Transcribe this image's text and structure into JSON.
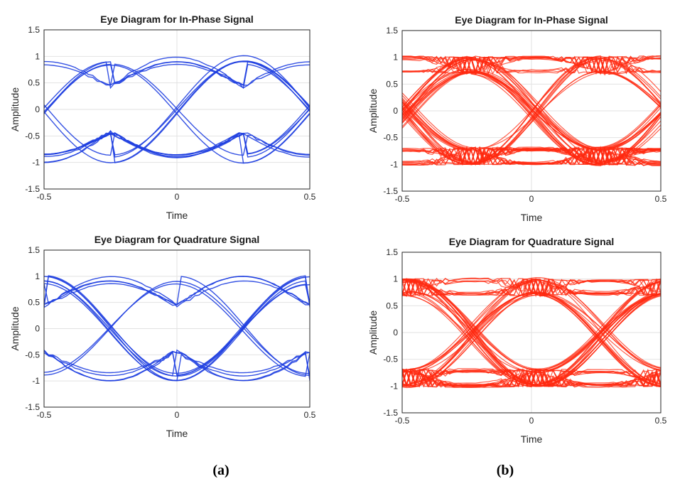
{
  "captions": {
    "a": "(a)",
    "b": "(b)"
  },
  "chart_data": [
    {
      "type": "line",
      "panel": "a",
      "title": "Eye Diagram for In-Phase Signal",
      "xlabel": "Time",
      "ylabel": "Amplitude",
      "xlim": [
        -0.5,
        0.5
      ],
      "ylim": [
        -1.5,
        1.5
      ],
      "xticks": [
        -0.5,
        0,
        0.5
      ],
      "xtick_labels": [
        "-0.5",
        "0",
        "0.5"
      ],
      "yticks": [
        1.5,
        1,
        0.5,
        0,
        -0.5,
        -1,
        -1.5
      ],
      "ytick_labels": [
        "1.5",
        "1",
        "0.5",
        "0",
        "-0.5",
        "-1",
        "-1.5"
      ],
      "grid": true,
      "color": "#1f3fe0",
      "crossings": [
        -0.25,
        0.25
      ],
      "eye_center_values": [
        1.0,
        0.9,
        0.85,
        -0.85,
        -0.9,
        -1.0
      ],
      "eye_edge_values": [
        0.45,
        0.4,
        -0.4,
        -0.45
      ]
    },
    {
      "type": "line",
      "panel": "b",
      "title": "Eye Diagram for In-Phase Signal",
      "xlabel": "Time",
      "ylabel": "Amplitude",
      "xlim": [
        -0.5,
        0.5
      ],
      "ylim": [
        -1.5,
        1.5
      ],
      "xticks": [
        -0.5,
        0,
        0.5
      ],
      "xtick_labels": [
        "-0.5",
        "0",
        "0.5"
      ],
      "yticks": [
        1.5,
        1,
        0.5,
        0,
        -0.5,
        -1,
        -1.5
      ],
      "ytick_labels": [
        "1.5",
        "1",
        "0.5",
        "0",
        "-0.5",
        "-1",
        "-1.5"
      ],
      "grid": true,
      "color": "#ff2a10",
      "crossings": [
        -0.23,
        0.27
      ],
      "eye_center_values": [
        1.0,
        0.97,
        0.75,
        0.72,
        -0.7,
        -0.73,
        -0.97,
        -1.0
      ],
      "eye_edge_values": [
        1.0,
        0.72,
        -0.68,
        -1.0
      ]
    },
    {
      "type": "line",
      "panel": "a",
      "title": "Eye Diagram for Quadrature Signal",
      "xlabel": "Time",
      "ylabel": "Amplitude",
      "xlim": [
        -0.5,
        0.5
      ],
      "ylim": [
        -1.5,
        1.5
      ],
      "xticks": [
        -0.5,
        0,
        0.5
      ],
      "xtick_labels": [
        "-0.5",
        "0",
        "0.5"
      ],
      "yticks": [
        1.5,
        1,
        0.5,
        0,
        -0.5,
        -1,
        -1.5
      ],
      "ytick_labels": [
        "1.5",
        "1",
        "0.5",
        "0",
        "-0.5",
        "-1",
        "-1.5"
      ],
      "grid": true,
      "color": "#1f3fe0",
      "crossings": [
        -0.5,
        0.0,
        0.5
      ],
      "eye_center_values": [
        1.0,
        0.9,
        0.85,
        -0.85,
        -0.9,
        -1.0
      ],
      "eye_edge_values": [
        0.45,
        0.4,
        -0.4,
        -0.45
      ]
    },
    {
      "type": "line",
      "panel": "b",
      "title": "Eye Diagram for Quadrature Signal",
      "xlabel": "Time",
      "ylabel": "Amplitude",
      "xlim": [
        -0.5,
        0.5
      ],
      "ylim": [
        -1.5,
        1.5
      ],
      "xticks": [
        -0.5,
        0,
        0.5
      ],
      "xtick_labels": [
        "-0.5",
        "0",
        "0.5"
      ],
      "yticks": [
        1.5,
        1,
        0.5,
        0,
        -0.5,
        -1,
        -1.5
      ],
      "ytick_labels": [
        "1.5",
        "1",
        "0.5",
        "0",
        "-0.5",
        "-1",
        "-1.5"
      ],
      "grid": true,
      "color": "#ff2a10",
      "crossings": [
        -0.48,
        0.02,
        0.52
      ],
      "eye_center_values": [
        1.0,
        0.97,
        0.75,
        0.72,
        -0.7,
        -0.73,
        -0.97,
        -1.0
      ],
      "eye_edge_values": [
        1.0,
        0.72,
        -0.68,
        -1.0
      ]
    }
  ]
}
